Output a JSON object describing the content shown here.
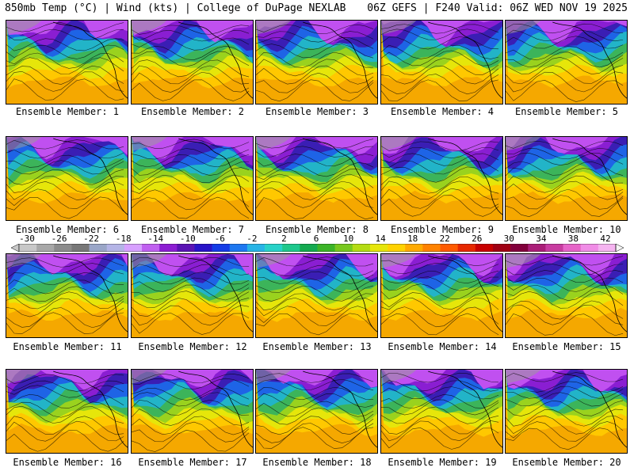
{
  "header": {
    "title_left": "850mb Temp (°C) | Wind (kts) | College of DuPage NEXLAB",
    "title_right": "06Z GEFS | F240 Valid: 06Z WED NOV 19 2025"
  },
  "members": [
    {
      "label": "Ensemble Member: 1"
    },
    {
      "label": "Ensemble Member: 2"
    },
    {
      "label": "Ensemble Member: 3"
    },
    {
      "label": "Ensemble Member: 4"
    },
    {
      "label": "Ensemble Member: 5"
    },
    {
      "label": "Ensemble Member: 6"
    },
    {
      "label": "Ensemble Member: 7"
    },
    {
      "label": "Ensemble Member: 8"
    },
    {
      "label": "Ensemble Member: 9"
    },
    {
      "label": "Ensemble Member: 10"
    },
    {
      "label": "Ensemble Member: 11"
    },
    {
      "label": "Ensemble Member: 12"
    },
    {
      "label": "Ensemble Member: 13"
    },
    {
      "label": "Ensemble Member: 14"
    },
    {
      "label": "Ensemble Member: 15"
    },
    {
      "label": "Ensemble Member: 16"
    },
    {
      "label": "Ensemble Member: 17"
    },
    {
      "label": "Ensemble Member: 18"
    },
    {
      "label": "Ensemble Member: 19"
    },
    {
      "label": "Ensemble Member: 20"
    }
  ],
  "colorbar": {
    "labels": [
      "-30",
      "-26",
      "-22",
      "-18",
      "-14",
      "-10",
      "-6",
      "-2",
      "2",
      "6",
      "10",
      "14",
      "18",
      "22",
      "26",
      "30",
      "34",
      "38",
      "42"
    ],
    "colors": [
      "#c8c8c8",
      "#a8a8a8",
      "#8c8c8c",
      "#787878",
      "#9aa6c8",
      "#b4b4e6",
      "#d7a0ff",
      "#c060f0",
      "#8c1ed2",
      "#5a14b4",
      "#2814c8",
      "#143ce6",
      "#1e78f0",
      "#28b4e6",
      "#28d2c8",
      "#1ec88c",
      "#14aa50",
      "#3cb428",
      "#78c81e",
      "#b4dc14",
      "#e6e60a",
      "#ffd200",
      "#ffaa00",
      "#ff8200",
      "#ff5a00",
      "#e62800",
      "#c80000",
      "#a00014",
      "#82003c",
      "#aa1e78",
      "#c83ca0",
      "#e664c8",
      "#f08ce6",
      "#f5b4f0"
    ]
  }
}
